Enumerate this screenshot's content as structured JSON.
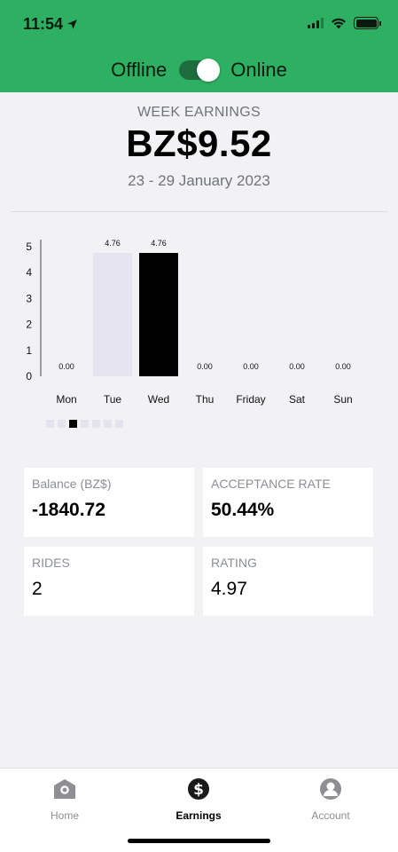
{
  "status_bar": {
    "time": "11:54"
  },
  "header": {
    "offline_label": "Offline",
    "online_label": "Online",
    "online": true
  },
  "summary": {
    "label": "WEEK EARNINGS",
    "amount": "BZ$9.52",
    "range": "23 - 29 January 2023"
  },
  "chart_data": {
    "type": "bar",
    "categories": [
      "Mon",
      "Tue",
      "Wed",
      "Thu",
      "Friday",
      "Sat",
      "Sun"
    ],
    "values": [
      0.0,
      4.76,
      4.76,
      0.0,
      0.0,
      0.0,
      0.0
    ],
    "value_labels": [
      "0.00",
      "4.76",
      "4.76",
      "0.00",
      "0.00",
      "0.00",
      "0.00"
    ],
    "highlighted_index": 2,
    "ylim": [
      0,
      5
    ],
    "yticks": [
      0,
      1,
      2,
      3,
      4,
      5
    ],
    "colors": {
      "default": "#e6e4f0",
      "highlight": "#000000"
    }
  },
  "pager": {
    "count": 7,
    "active": 3
  },
  "stats": {
    "balance": {
      "label": "Balance (BZ$)",
      "value": "-1840.72"
    },
    "acceptance": {
      "label": "ACCEPTANCE RATE",
      "value": "50.44%"
    },
    "rides": {
      "label": "RIDES",
      "value": "2"
    },
    "rating": {
      "label": "RATING",
      "value": "4.97"
    }
  },
  "tabs": [
    {
      "label": "Home",
      "icon": "home-icon",
      "active": false
    },
    {
      "label": "Earnings",
      "icon": "dollar-icon",
      "active": true
    },
    {
      "label": "Account",
      "icon": "person-icon",
      "active": false
    }
  ],
  "colors": {
    "header_green": "#2eb062",
    "background": "#f2f2f5"
  }
}
